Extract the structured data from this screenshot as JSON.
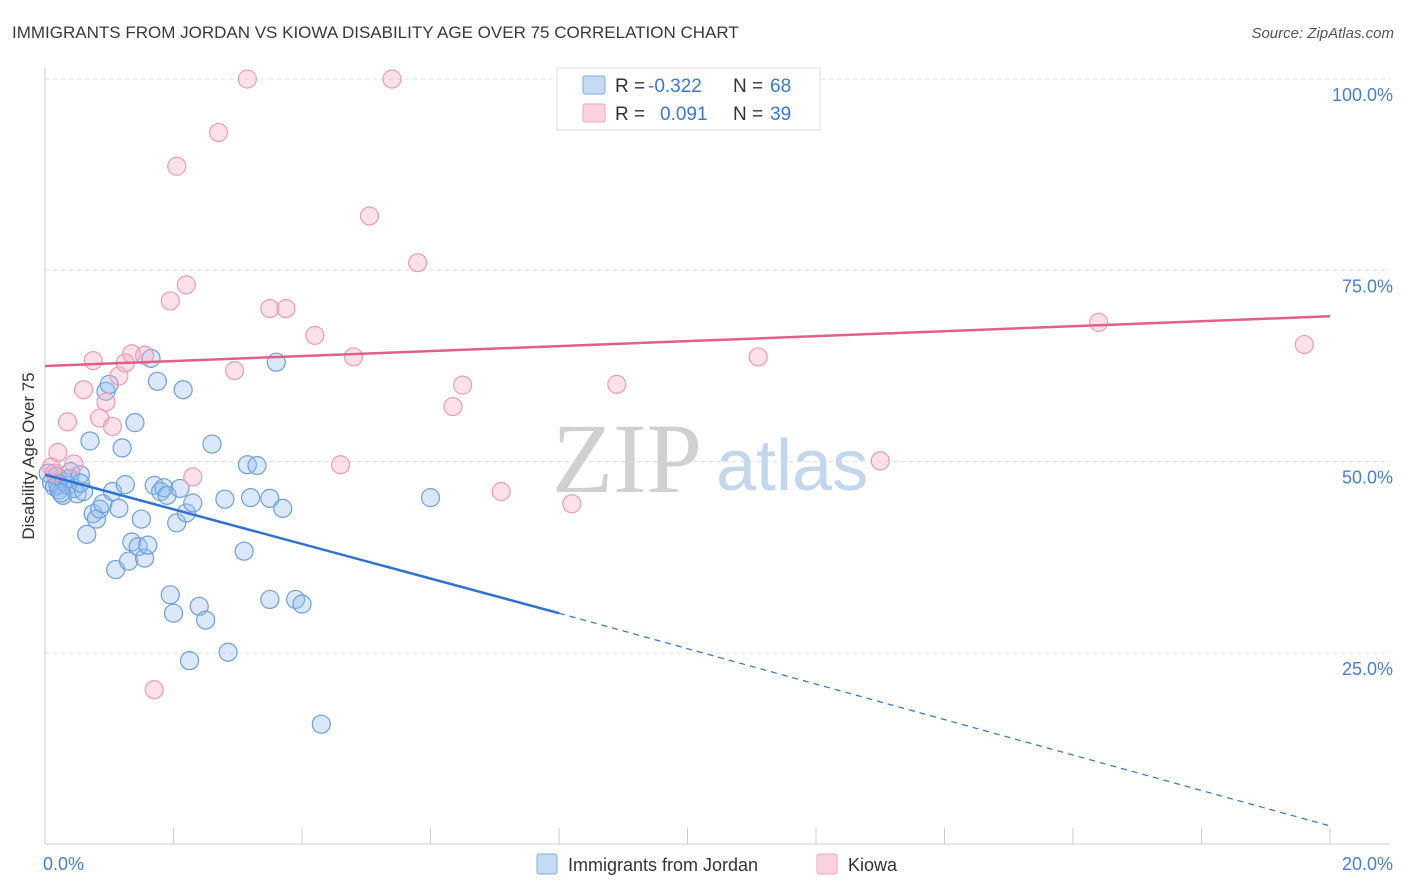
{
  "header": {
    "title": "IMMIGRANTS FROM JORDAN VS KIOWA DISABILITY AGE OVER 75 CORRELATION CHART",
    "source": "Source: ZipAtlas.com"
  },
  "watermark": {
    "zip": "ZIP",
    "atlas": "atlas"
  },
  "legend": {
    "rows": [
      {
        "r_label": "R =",
        "r_value": "-0.322",
        "n_label": "N =",
        "n_value": "68",
        "color": "#7aaee8"
      },
      {
        "r_label": "R =",
        "r_value": "0.091",
        "n_label": "N =",
        "n_value": "39",
        "color": "#f2a5bd"
      }
    ]
  },
  "bottom_legend": {
    "items": [
      {
        "label": "Immigrants from Jordan",
        "color": "#7aaee8"
      },
      {
        "label": "Kiowa",
        "color": "#f2a5bd"
      }
    ]
  },
  "chart_data": {
    "type": "scatter",
    "ylabel": "Disability Age Over 75",
    "xlabel": "",
    "xlim": [
      0,
      20
    ],
    "ylim": [
      0,
      105
    ],
    "x_tick_labels": [
      {
        "value": 0,
        "label": "0.0%"
      },
      {
        "value": 20,
        "label": "20.0%"
      }
    ],
    "y_tick_labels": [
      {
        "value": 25,
        "label": "25.0%"
      },
      {
        "value": 50,
        "label": "50.0%"
      },
      {
        "value": 75,
        "label": "75.0%"
      },
      {
        "value": 100,
        "label": "100.0%"
      }
    ],
    "grid": true,
    "series": [
      {
        "name": "Immigrants from Jordan",
        "color": "#7aaee8",
        "trend": {
          "x": [
            0,
            8
          ],
          "y": [
            48.3,
            30.2
          ],
          "dashed_to": [
            20,
            2.4
          ]
        },
        "points": [
          [
            0.05,
            48.5
          ],
          [
            0.1,
            47.3
          ],
          [
            0.15,
            46.7
          ],
          [
            0.18,
            48.1
          ],
          [
            0.2,
            47.0
          ],
          [
            0.22,
            46.3
          ],
          [
            0.28,
            45.6
          ],
          [
            0.3,
            47.4
          ],
          [
            0.35,
            46.9
          ],
          [
            0.38,
            47.8
          ],
          [
            0.4,
            48.7
          ],
          [
            0.45,
            46.5
          ],
          [
            0.5,
            45.8
          ],
          [
            0.55,
            48.3
          ],
          [
            0.6,
            46.1
          ],
          [
            0.65,
            40.5
          ],
          [
            0.7,
            52.7
          ],
          [
            0.75,
            43.2
          ],
          [
            0.8,
            42.5
          ],
          [
            0.85,
            43.8
          ],
          [
            0.9,
            44.5
          ],
          [
            0.95,
            59.2
          ],
          [
            1.0,
            60.1
          ],
          [
            1.05,
            46.1
          ],
          [
            1.1,
            35.9
          ],
          [
            1.15,
            43.9
          ],
          [
            1.2,
            51.8
          ],
          [
            1.25,
            47.0
          ],
          [
            1.3,
            37.0
          ],
          [
            1.35,
            39.5
          ],
          [
            1.4,
            55.1
          ],
          [
            1.45,
            38.9
          ],
          [
            1.5,
            42.5
          ],
          [
            1.55,
            37.4
          ],
          [
            1.6,
            39.1
          ],
          [
            1.65,
            63.5
          ],
          [
            1.7,
            46.9
          ],
          [
            1.75,
            60.5
          ],
          [
            1.8,
            46.1
          ],
          [
            1.85,
            46.6
          ],
          [
            1.9,
            45.6
          ],
          [
            1.95,
            32.6
          ],
          [
            2.0,
            30.2
          ],
          [
            2.05,
            42.0
          ],
          [
            2.1,
            46.5
          ],
          [
            2.15,
            59.4
          ],
          [
            2.2,
            43.3
          ],
          [
            2.25,
            24.0
          ],
          [
            2.3,
            44.6
          ],
          [
            2.4,
            31.1
          ],
          [
            2.5,
            29.3
          ],
          [
            2.6,
            52.3
          ],
          [
            2.8,
            45.1
          ],
          [
            2.85,
            25.1
          ],
          [
            3.1,
            38.3
          ],
          [
            3.15,
            49.6
          ],
          [
            3.2,
            45.3
          ],
          [
            3.3,
            49.5
          ],
          [
            3.5,
            45.2
          ],
          [
            3.5,
            32.0
          ],
          [
            3.6,
            63.0
          ],
          [
            3.7,
            43.9
          ],
          [
            3.9,
            32.0
          ],
          [
            4.0,
            31.4
          ],
          [
            4.3,
            15.7
          ],
          [
            6.0,
            45.3
          ],
          [
            0.25,
            45.9
          ],
          [
            0.55,
            47.2
          ]
        ]
      },
      {
        "name": "Kiowa",
        "color": "#f2a5bd",
        "trend": {
          "x": [
            0,
            20
          ],
          "y": [
            62.5,
            69.0
          ]
        },
        "points": [
          [
            0.1,
            49.3
          ],
          [
            0.2,
            51.2
          ],
          [
            0.35,
            55.2
          ],
          [
            0.45,
            49.7
          ],
          [
            0.6,
            59.4
          ],
          [
            0.75,
            63.2
          ],
          [
            0.85,
            55.7
          ],
          [
            0.95,
            57.8
          ],
          [
            1.05,
            54.6
          ],
          [
            1.15,
            61.2
          ],
          [
            1.25,
            62.9
          ],
          [
            1.35,
            64.1
          ],
          [
            1.55,
            63.9
          ],
          [
            1.7,
            20.2
          ],
          [
            1.95,
            71.0
          ],
          [
            2.05,
            88.6
          ],
          [
            2.2,
            73.1
          ],
          [
            2.3,
            48.0
          ],
          [
            2.7,
            93.0
          ],
          [
            2.95,
            61.9
          ],
          [
            3.15,
            100.0
          ],
          [
            3.5,
            70.0
          ],
          [
            3.75,
            70.0
          ],
          [
            4.2,
            66.5
          ],
          [
            4.6,
            49.6
          ],
          [
            4.8,
            63.7
          ],
          [
            5.05,
            82.1
          ],
          [
            5.4,
            100.0
          ],
          [
            5.8,
            76.0
          ],
          [
            6.35,
            57.2
          ],
          [
            6.5,
            60.0
          ],
          [
            7.1,
            46.1
          ],
          [
            8.2,
            44.5
          ],
          [
            8.9,
            60.1
          ],
          [
            11.1,
            63.7
          ],
          [
            13.0,
            50.1
          ],
          [
            16.4,
            68.2
          ],
          [
            19.6,
            65.3
          ],
          [
            0.15,
            48.5
          ]
        ]
      }
    ]
  }
}
